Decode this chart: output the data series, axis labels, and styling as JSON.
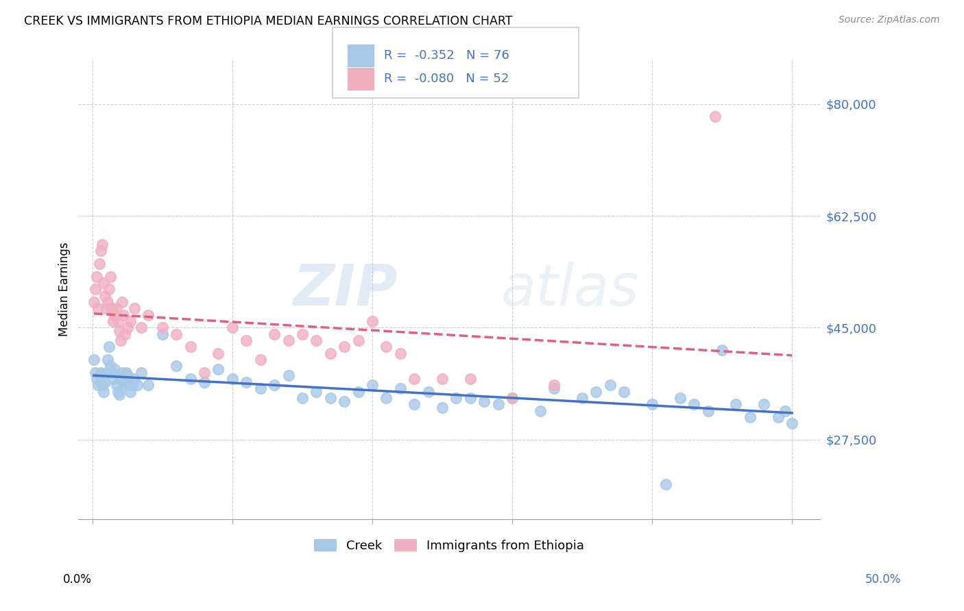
{
  "title": "CREEK VS IMMIGRANTS FROM ETHIOPIA MEDIAN EARNINGS CORRELATION CHART",
  "source": "Source: ZipAtlas.com",
  "ylabel": "Median Earnings",
  "watermark_part1": "ZIP",
  "watermark_part2": "atlas",
  "y_ticks": [
    27500,
    45000,
    62500,
    80000
  ],
  "y_tick_labels": [
    "$27,500",
    "$45,000",
    "$62,500",
    "$80,000"
  ],
  "x_min": 0.0,
  "x_max": 50.0,
  "y_min": 15000,
  "y_max": 87000,
  "creek_color": "#a8c8e8",
  "ethiopia_color": "#f0b0c0",
  "creek_line_color": "#4472c4",
  "ethiopia_line_color": "#e06080",
  "creek_R": "-0.352",
  "creek_N": "76",
  "ethiopia_R": "-0.080",
  "ethiopia_N": "52",
  "legend_label_creek": "Creek",
  "legend_label_ethiopia": "Immigrants from Ethiopia",
  "creek_scatter_x": [
    0.1,
    0.2,
    0.3,
    0.4,
    0.5,
    0.6,
    0.7,
    0.8,
    0.9,
    1.0,
    1.1,
    1.2,
    1.3,
    1.4,
    1.5,
    1.6,
    1.7,
    1.8,
    1.9,
    2.0,
    2.1,
    2.2,
    2.3,
    2.4,
    2.5,
    2.6,
    2.7,
    2.8,
    3.0,
    3.2,
    3.5,
    4.0,
    5.0,
    6.0,
    7.0,
    8.0,
    9.0,
    10.0,
    11.0,
    12.0,
    13.0,
    14.0,
    15.0,
    16.0,
    17.0,
    18.0,
    19.0,
    20.0,
    21.0,
    22.0,
    23.0,
    24.0,
    25.0,
    26.0,
    27.0,
    28.0,
    29.0,
    30.0,
    32.0,
    35.0,
    37.0,
    38.0,
    40.0,
    41.0,
    43.0,
    44.0,
    45.0,
    46.0,
    47.0,
    48.0,
    49.0,
    49.5,
    50.0,
    42.0,
    36.0,
    33.0
  ],
  "creek_scatter_y": [
    40000,
    38000,
    37000,
    36000,
    37500,
    38000,
    36000,
    35000,
    36500,
    38000,
    40000,
    42000,
    39000,
    38000,
    37000,
    38500,
    36000,
    35000,
    34500,
    37000,
    38000,
    36000,
    36500,
    38000,
    37500,
    36000,
    35000,
    36000,
    37000,
    36000,
    38000,
    36000,
    44000,
    39000,
    37000,
    36500,
    38500,
    37000,
    36500,
    35500,
    36000,
    37500,
    34000,
    35000,
    34000,
    33500,
    35000,
    36000,
    34000,
    35500,
    33000,
    35000,
    32500,
    34000,
    34000,
    33500,
    33000,
    34000,
    32000,
    34000,
    36000,
    35000,
    33000,
    20500,
    33000,
    32000,
    41500,
    33000,
    31000,
    33000,
    31000,
    32000,
    30000,
    34000,
    35000,
    35500
  ],
  "ethiopia_scatter_x": [
    0.1,
    0.2,
    0.3,
    0.4,
    0.5,
    0.6,
    0.7,
    0.8,
    0.9,
    1.0,
    1.1,
    1.2,
    1.3,
    1.4,
    1.5,
    1.6,
    1.7,
    1.8,
    1.9,
    2.0,
    2.1,
    2.2,
    2.3,
    2.5,
    2.7,
    3.0,
    3.5,
    4.0,
    5.0,
    6.0,
    7.0,
    8.0,
    9.0,
    10.0,
    11.0,
    12.0,
    13.0,
    14.0,
    15.0,
    16.0,
    17.0,
    18.0,
    19.0,
    20.0,
    21.0,
    22.0,
    23.0,
    25.0,
    27.0,
    30.0,
    33.0,
    44.5
  ],
  "ethiopia_scatter_y": [
    49000,
    51000,
    53000,
    48000,
    55000,
    57000,
    58000,
    52000,
    50000,
    48000,
    49000,
    51000,
    53000,
    48000,
    46000,
    47000,
    48000,
    46000,
    44500,
    43000,
    49000,
    47000,
    44000,
    45000,
    46000,
    48000,
    45000,
    47000,
    45000,
    44000,
    42000,
    38000,
    41000,
    45000,
    43000,
    40000,
    44000,
    43000,
    44000,
    43000,
    41000,
    42000,
    43000,
    46000,
    42000,
    41000,
    37000,
    37000,
    37000,
    34000,
    36000,
    78000
  ]
}
